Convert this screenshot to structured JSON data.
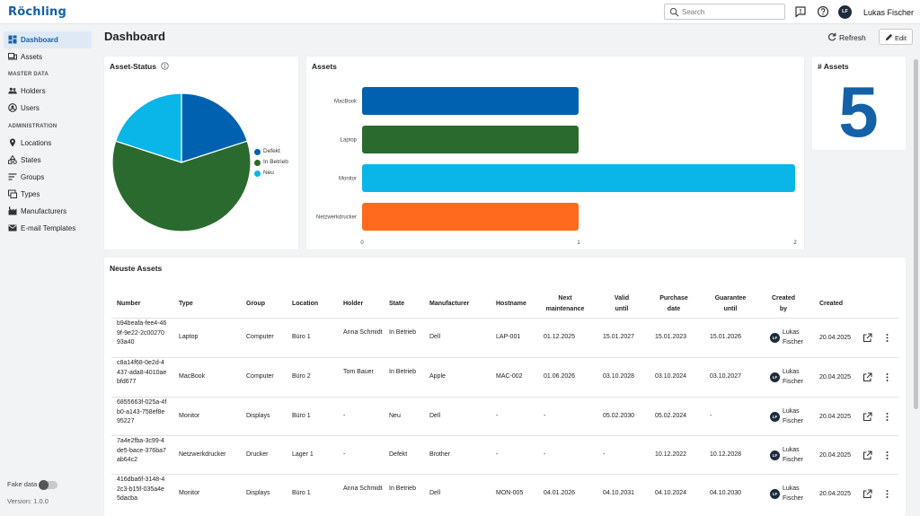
{
  "app": {
    "logo": "Röchling",
    "search_placeholder": "Search",
    "user_initials": "LF",
    "user_name": "Lukas Fischer"
  },
  "sidebar": {
    "items": [
      {
        "label": "Dashboard",
        "icon": "dashboard-icon",
        "active": true
      },
      {
        "label": "Assets",
        "icon": "devices-icon"
      }
    ],
    "master_data": {
      "title": "MASTER DATA",
      "items": [
        {
          "label": "Holders",
          "icon": "people-icon"
        },
        {
          "label": "Users",
          "icon": "user-circle-icon"
        }
      ]
    },
    "administration": {
      "title": "ADMINISTRATION",
      "items": [
        {
          "label": "Locations",
          "icon": "location-pin-icon"
        },
        {
          "label": "States",
          "icon": "shapes-icon"
        },
        {
          "label": "Groups",
          "icon": "sort-lines-icon"
        },
        {
          "label": "Types",
          "icon": "type-box-icon"
        },
        {
          "label": "Manufacturers",
          "icon": "factory-icon"
        },
        {
          "label": "E-mail Templates",
          "icon": "mail-icon"
        }
      ]
    },
    "fake_data_label": "Fake data",
    "fake_data_enabled": false,
    "version": "Version: 1.0.0"
  },
  "header": {
    "title": "Dashboard",
    "refresh_label": "Refresh",
    "edit_label": "Edit"
  },
  "asset_status": {
    "title": "Asset-Status",
    "legend": [
      {
        "label": "Defekt",
        "color": "#0061b0"
      },
      {
        "label": "In Betrieb",
        "color": "#2a6a2e"
      },
      {
        "label": "Neu",
        "color": "#0ab6e8"
      }
    ]
  },
  "assets_chart": {
    "title": "Assets"
  },
  "asset_count": {
    "title": "# Assets",
    "value": "5"
  },
  "chart_data": [
    {
      "type": "pie",
      "title": "Asset-Status",
      "categories": [
        "Defekt",
        "In Betrieb",
        "Neu"
      ],
      "values": [
        1,
        3,
        1
      ],
      "colors": [
        "#0061b0",
        "#2a6a2e",
        "#0ab6e8"
      ],
      "legend": "right"
    },
    {
      "type": "bar",
      "orientation": "horizontal",
      "title": "Assets",
      "categories": [
        "MacBook",
        "Laptop",
        "Monitor",
        "Netzwerkdrucker"
      ],
      "values": [
        1,
        1,
        2,
        1
      ],
      "colors": [
        "#0061b0",
        "#2a6a2e",
        "#0ab6e8",
        "#ff6a1f"
      ],
      "xlim": [
        0,
        2
      ],
      "xticks": [
        "0",
        "1",
        "2"
      ],
      "grid": false
    }
  ],
  "table": {
    "title": "Neuste Assets",
    "columns": [
      "Number",
      "Type",
      "Group",
      "Location",
      "Holder",
      "State",
      "Manufacturer",
      "Hostname",
      "Next maintenance",
      "Valid until",
      "Purchase date",
      "Guarantee until",
      "Created by",
      "Created"
    ],
    "rows": [
      {
        "number": "b94beafa-fee4-469f-9e22-2c0027093a40",
        "type": "Laptop",
        "group": "Computer",
        "location": "Büro 1",
        "holder": "Anna Schmidt",
        "state": "In Betrieb",
        "manufacturer": "Dell",
        "hostname": "LAP-001",
        "next_maintenance": "01.12.2025",
        "valid_until": "15.01.2027",
        "purchase_date": "15.01.2023",
        "guarantee_until": "15.01.2026",
        "created_by": "Lukas Fischer",
        "created_by_initials": "LF",
        "created": "20.04.2025"
      },
      {
        "number": "c8a14f68-0e2d-4437-ada8-4010aebfd677",
        "type": "MacBook",
        "group": "Computer",
        "location": "Büro 2",
        "holder": "Tom Bauer",
        "state": "In Betrieb",
        "manufacturer": "Apple",
        "hostname": "MAC-002",
        "next_maintenance": "01.06.2026",
        "valid_until": "03.10.2028",
        "purchase_date": "03.10.2024",
        "guarantee_until": "03.10.2027",
        "created_by": "Lukas Fischer",
        "created_by_initials": "LF",
        "created": "20.04.2025"
      },
      {
        "number": "6855663f-025a-4fb0-a143-758ef8e95227",
        "type": "Monitor",
        "group": "Displays",
        "location": "Büro 1",
        "holder": "-",
        "state": "Neu",
        "manufacturer": "Dell",
        "hostname": "-",
        "next_maintenance": "-",
        "valid_until": "05.02.2030",
        "purchase_date": "05.02.2024",
        "guarantee_until": "-",
        "created_by": "Lukas Fischer",
        "created_by_initials": "LF",
        "created": "20.04.2025"
      },
      {
        "number": "7a4e2fba-3c99-4de5-bace-376ba7ab64c2",
        "type": "Netzwerkdrucker",
        "group": "Drucker",
        "location": "Lager 1",
        "holder": "-",
        "state": "Defekt",
        "manufacturer": "Brother",
        "hostname": "-",
        "next_maintenance": "-",
        "valid_until": "-",
        "purchase_date": "10.12.2022",
        "guarantee_until": "10.12.2028",
        "created_by": "Lukas Fischer",
        "created_by_initials": "LF",
        "created": "20.04.2025"
      },
      {
        "number": "416dba6f-3148-42c3-b15f-035a4e5dacba",
        "type": "Monitor",
        "group": "Displays",
        "location": "Büro 1",
        "holder": "Anna Schmidt",
        "state": "In Betrieb",
        "manufacturer": "Dell",
        "hostname": "MON-005",
        "next_maintenance": "04.01.2026",
        "valid_until": "04.10.2031",
        "purchase_date": "04.10.2024",
        "guarantee_until": "04.10.2030",
        "created_by": "Lukas Fischer",
        "created_by_initials": "LF",
        "created": "20.04.2025"
      }
    ]
  }
}
